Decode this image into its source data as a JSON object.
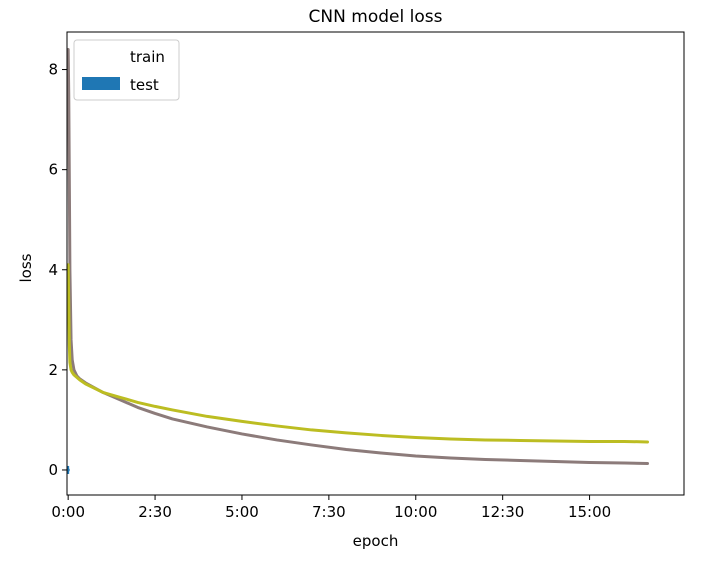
{
  "chart_data": {
    "type": "line",
    "title": "CNN model loss",
    "xlabel": "epoch",
    "ylabel": "loss",
    "xlim": [
      "-0:02",
      "17:43"
    ],
    "ylim": [
      -0.5,
      8.75
    ],
    "x_ticks": [
      "0:00",
      "2:30",
      "5:00",
      "7:30",
      "10:00",
      "12:30",
      "15:00"
    ],
    "y_ticks": [
      "0",
      "2",
      "4",
      "6",
      "8"
    ],
    "grid": false,
    "legend": {
      "placement": "upper left",
      "entries": [
        {
          "label": "train",
          "color": "#ffffff",
          "swatch": "none"
        },
        {
          "label": "test",
          "color": "#1f77b4",
          "swatch": "patch"
        }
      ]
    },
    "series": [
      {
        "color": "#8c7b7a",
        "x": [
          "0:00",
          "0:01",
          "0:02",
          "0:03",
          "0:05",
          "0:07",
          "0:10",
          "0:15",
          "0:20",
          "0:30",
          "1:00",
          "1:30",
          "2:00",
          "2:30",
          "3:00",
          "4:00",
          "5:00",
          "6:00",
          "7:00",
          "8:00",
          "9:00",
          "10:00",
          "11:00",
          "12:00",
          "13:00",
          "14:00",
          "15:00",
          "16:00",
          "16:40"
        ],
        "values": [
          8.4,
          7.5,
          5.8,
          4.0,
          2.6,
          2.2,
          2.0,
          1.88,
          1.82,
          1.74,
          1.55,
          1.4,
          1.25,
          1.13,
          1.02,
          0.86,
          0.72,
          0.6,
          0.5,
          0.41,
          0.34,
          0.28,
          0.24,
          0.21,
          0.19,
          0.17,
          0.15,
          0.14,
          0.13
        ]
      },
      {
        "color": "#bcbd22",
        "x": [
          "0:00",
          "0:01",
          "0:02",
          "0:03",
          "0:05",
          "0:07",
          "0:10",
          "0:15",
          "0:20",
          "0:30",
          "1:00",
          "1:30",
          "2:00",
          "2:30",
          "3:00",
          "4:00",
          "5:00",
          "6:00",
          "7:00",
          "8:00",
          "9:00",
          "10:00",
          "11:00",
          "12:00",
          "13:00",
          "14:00",
          "15:00",
          "16:00",
          "16:40"
        ],
        "values": [
          4.1,
          3.3,
          2.5,
          2.15,
          2.0,
          1.95,
          1.9,
          1.85,
          1.8,
          1.72,
          1.55,
          1.45,
          1.35,
          1.27,
          1.2,
          1.07,
          0.97,
          0.88,
          0.8,
          0.74,
          0.69,
          0.65,
          0.62,
          0.6,
          0.59,
          0.58,
          0.57,
          0.57,
          0.56
        ]
      },
      {
        "color": "#1f77b4",
        "x": [
          "0:00"
        ],
        "values": [
          0.0
        ],
        "yerr": [
          0.08
        ]
      }
    ]
  }
}
